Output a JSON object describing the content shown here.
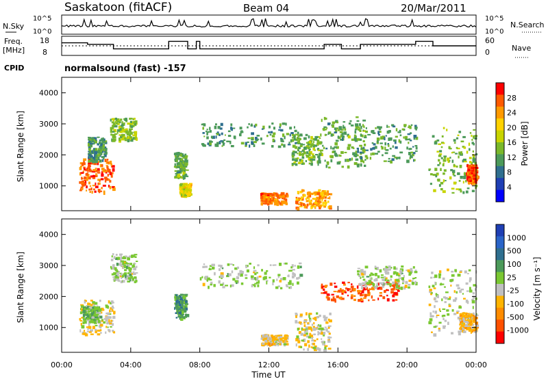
{
  "header": {
    "station": "Saskatoon (fitACF)",
    "beam": "Beam 04",
    "date": "20/Mar/2011"
  },
  "strip_panels": {
    "noise": {
      "left_label": "N.Sky",
      "right_label": "N.Search",
      "left_ticks": [
        "10^5",
        "10^0"
      ],
      "right_ticks": [
        "10^5",
        "10^0"
      ]
    },
    "frequency": {
      "left_label_1": "Freq.",
      "left_label_2": "[MHz]",
      "left_ticks": [
        "18",
        "8"
      ],
      "right_label": "Nave",
      "right_ticks": [
        "60",
        "0"
      ]
    },
    "cpid": {
      "label": "CPID",
      "value": "normalsound (fast) -157"
    }
  },
  "axes": {
    "ylabel": "Slant Range [km]",
    "xlabel": "Time UT",
    "y_ticks": [
      "4000",
      "3000",
      "2000",
      "1000"
    ],
    "x_ticks": [
      "00:00",
      "04:00",
      "08:00",
      "12:00",
      "16:00",
      "20:00",
      "00:00"
    ]
  },
  "colorbars": {
    "power": {
      "label": "Power [dB]",
      "ticks": [
        "28",
        "24",
        "20",
        "16",
        "12",
        "8",
        "4"
      ],
      "colors": [
        "#0000ff",
        "#1f3fb4",
        "#2f6f8f",
        "#4c9a5a",
        "#7ab82a",
        "#c8d400",
        "#ffd200",
        "#ff9a00",
        "#ff5a00",
        "#ff0000"
      ]
    },
    "velocity": {
      "label": "Velocity [m s⁻¹]",
      "ticks": [
        "1000",
        "500",
        "100",
        "25",
        "-25",
        "-100",
        "-500",
        "-1000"
      ],
      "colors": [
        "#1f3fb4",
        "#2a64c8",
        "#2f6f8f",
        "#4c9a5a",
        "#7ac832",
        "#c0c0c0",
        "#ffb400",
        "#ff8c00",
        "#ff5000",
        "#ff0000"
      ]
    }
  },
  "chart_data": {
    "type": "heatmap",
    "x_range": [
      "00:00",
      "24:00"
    ],
    "y_range_km": [
      200,
      4500
    ],
    "panels": [
      {
        "quantity": "Power",
        "unit": "dB",
        "range": [
          0,
          30
        ],
        "echo_regions": [
          {
            "t0": 1.0,
            "t1": 3.0,
            "r0": 800,
            "r1": 1900,
            "level": 25
          },
          {
            "t0": 1.5,
            "t1": 2.5,
            "r0": 1800,
            "r1": 2600,
            "level": 10
          },
          {
            "t0": 2.8,
            "t1": 4.3,
            "r0": 2500,
            "r1": 3200,
            "level": 14
          },
          {
            "t0": 6.5,
            "t1": 7.2,
            "r0": 1300,
            "r1": 2100,
            "level": 12
          },
          {
            "t0": 6.8,
            "t1": 7.4,
            "r0": 700,
            "r1": 1100,
            "level": 18
          },
          {
            "t0": 8.0,
            "t1": 13.8,
            "r0": 2300,
            "r1": 3050,
            "level": 10
          },
          {
            "t0": 11.5,
            "t1": 13.0,
            "r0": 450,
            "r1": 800,
            "level": 24
          },
          {
            "t0": 13.5,
            "t1": 15.5,
            "r0": 300,
            "r1": 900,
            "level": 22
          },
          {
            "t0": 13.3,
            "t1": 15.0,
            "r0": 1700,
            "r1": 2700,
            "level": 13
          },
          {
            "t0": 15.0,
            "t1": 17.5,
            "r0": 1600,
            "r1": 3300,
            "level": 12
          },
          {
            "t0": 17.0,
            "t1": 20.5,
            "r0": 1800,
            "r1": 3000,
            "level": 11
          },
          {
            "t0": 21.2,
            "t1": 24.0,
            "r0": 800,
            "r1": 2900,
            "level": 13
          },
          {
            "t0": 23.4,
            "t1": 24.0,
            "r0": 1100,
            "r1": 1700,
            "level": 26
          }
        ]
      },
      {
        "quantity": "Velocity",
        "unit": "m s^-1",
        "range": [
          -1000,
          1000
        ],
        "echo_regions": [
          {
            "t0": 1.0,
            "t1": 3.0,
            "r0": 800,
            "r1": 1900,
            "level": -150
          },
          {
            "t0": 1.2,
            "t1": 2.2,
            "r0": 1200,
            "r1": 1700,
            "level": 150
          },
          {
            "t0": 2.8,
            "t1": 4.3,
            "r0": 2500,
            "r1": 3400,
            "level": 0
          },
          {
            "t0": 6.5,
            "t1": 7.2,
            "r0": 1300,
            "r1": 2100,
            "level": 300
          },
          {
            "t0": 8.0,
            "t1": 13.8,
            "r0": 2300,
            "r1": 3100,
            "level": 0
          },
          {
            "t0": 11.5,
            "t1": 13.0,
            "r0": 450,
            "r1": 800,
            "level": -200
          },
          {
            "t0": 13.5,
            "t1": 15.5,
            "r0": 300,
            "r1": 1500,
            "level": -150
          },
          {
            "t0": 15.0,
            "t1": 19.5,
            "r0": 1900,
            "r1": 2500,
            "level": -700
          },
          {
            "t0": 17.0,
            "t1": 20.5,
            "r0": 2300,
            "r1": 3000,
            "level": 0
          },
          {
            "t0": 21.2,
            "t1": 24.0,
            "r0": 800,
            "r1": 2900,
            "level": -50
          },
          {
            "t0": 23.0,
            "t1": 24.0,
            "r0": 900,
            "r1": 1500,
            "level": -300
          }
        ]
      }
    ],
    "frequency_MHz": [
      [
        0.0,
        15
      ],
      [
        1.5,
        14
      ],
      [
        3.0,
        11
      ],
      [
        6.0,
        11
      ],
      [
        6.2,
        16
      ],
      [
        7.0,
        16
      ],
      [
        7.3,
        11
      ],
      [
        7.8,
        16
      ],
      [
        8.0,
        11
      ],
      [
        13.5,
        11
      ],
      [
        15.0,
        11
      ],
      [
        15.2,
        14
      ],
      [
        15.9,
        14
      ],
      [
        16.2,
        11
      ],
      [
        17.3,
        14
      ],
      [
        20.0,
        14
      ],
      [
        20.5,
        16
      ],
      [
        21.5,
        13
      ],
      [
        22.5,
        13
      ],
      [
        24.0,
        13
      ]
    ],
    "nave_level": 30
  }
}
